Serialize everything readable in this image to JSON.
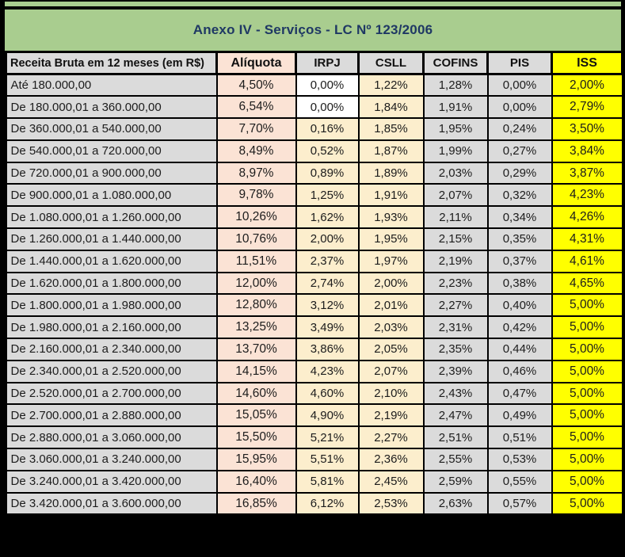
{
  "title": "Anexo IV - Serviços - LC Nº 123/2006",
  "colors": {
    "green": "#A9CD8F",
    "navy": "#1F3864",
    "gray": "#DBDBDB",
    "salmon": "#FBE3D5",
    "cream": "#FCEECD",
    "yellow": "#FFFF00",
    "white": "#FFFFFF",
    "border": "#000000"
  },
  "table": {
    "headers": [
      "Receita Bruta em 12 meses (em R$)",
      "Alíquota",
      "IRPJ",
      "CSLL",
      "COFINS",
      "PIS",
      "ISS"
    ],
    "irpj_white_rows": [
      0,
      1
    ],
    "rows": [
      [
        "Até 180.000,00",
        "4,50%",
        "0,00%",
        "1,22%",
        "1,28%",
        "0,00%",
        "2,00%"
      ],
      [
        "De 180.000,01 a 360.000,00",
        "6,54%",
        "0,00%",
        "1,84%",
        "1,91%",
        "0,00%",
        "2,79%"
      ],
      [
        "De 360.000,01 a 540.000,00",
        "7,70%",
        "0,16%",
        "1,85%",
        "1,95%",
        "0,24%",
        "3,50%"
      ],
      [
        "De 540.000,01 a 720.000,00",
        "8,49%",
        "0,52%",
        "1,87%",
        "1,99%",
        "0,27%",
        "3,84%"
      ],
      [
        "De 720.000,01 a 900.000,00",
        "8,97%",
        "0,89%",
        "1,89%",
        "2,03%",
        "0,29%",
        "3,87%"
      ],
      [
        "De 900.000,01 a 1.080.000,00",
        "9,78%",
        "1,25%",
        "1,91%",
        "2,07%",
        "0,32%",
        "4,23%"
      ],
      [
        "De 1.080.000,01 a 1.260.000,00",
        "10,26%",
        "1,62%",
        "1,93%",
        "2,11%",
        "0,34%",
        "4,26%"
      ],
      [
        "De 1.260.000,01 a 1.440.000,00",
        "10,76%",
        "2,00%",
        "1,95%",
        "2,15%",
        "0,35%",
        "4,31%"
      ],
      [
        "De 1.440.000,01 a 1.620.000,00",
        "11,51%",
        "2,37%",
        "1,97%",
        "2,19%",
        "0,37%",
        "4,61%"
      ],
      [
        "De 1.620.000,01 a 1.800.000,00",
        "12,00%",
        "2,74%",
        "2,00%",
        "2,23%",
        "0,38%",
        "4,65%"
      ],
      [
        "De 1.800.000,01 a 1.980.000,00",
        "12,80%",
        "3,12%",
        "2,01%",
        "2,27%",
        "0,40%",
        "5,00%"
      ],
      [
        "De 1.980.000,01 a 2.160.000,00",
        "13,25%",
        "3,49%",
        "2,03%",
        "2,31%",
        "0,42%",
        "5,00%"
      ],
      [
        "De 2.160.000,01 a 2.340.000,00",
        "13,70%",
        "3,86%",
        "2,05%",
        "2,35%",
        "0,44%",
        "5,00%"
      ],
      [
        "De 2.340.000,01 a 2.520.000,00",
        "14,15%",
        "4,23%",
        "2,07%",
        "2,39%",
        "0,46%",
        "5,00%"
      ],
      [
        "De 2.520.000,01 a 2.700.000,00",
        "14,60%",
        "4,60%",
        "2,10%",
        "2,43%",
        "0,47%",
        "5,00%"
      ],
      [
        "De 2.700.000,01 a 2.880.000,00",
        "15,05%",
        "4,90%",
        "2,19%",
        "2,47%",
        "0,49%",
        "5,00%"
      ],
      [
        "De 2.880.000,01 a 3.060.000,00",
        "15,50%",
        "5,21%",
        "2,27%",
        "2,51%",
        "0,51%",
        "5,00%"
      ],
      [
        "De 3.060.000,01 a 3.240.000,00",
        "15,95%",
        "5,51%",
        "2,36%",
        "2,55%",
        "0,53%",
        "5,00%"
      ],
      [
        "De 3.240.000,01 a 3.420.000,00",
        "16,40%",
        "5,81%",
        "2,45%",
        "2,59%",
        "0,55%",
        "5,00%"
      ],
      [
        "De 3.420.000,01 a 3.600.000,00",
        "16,85%",
        "6,12%",
        "2,53%",
        "2,63%",
        "0,57%",
        "5,00%"
      ]
    ]
  }
}
